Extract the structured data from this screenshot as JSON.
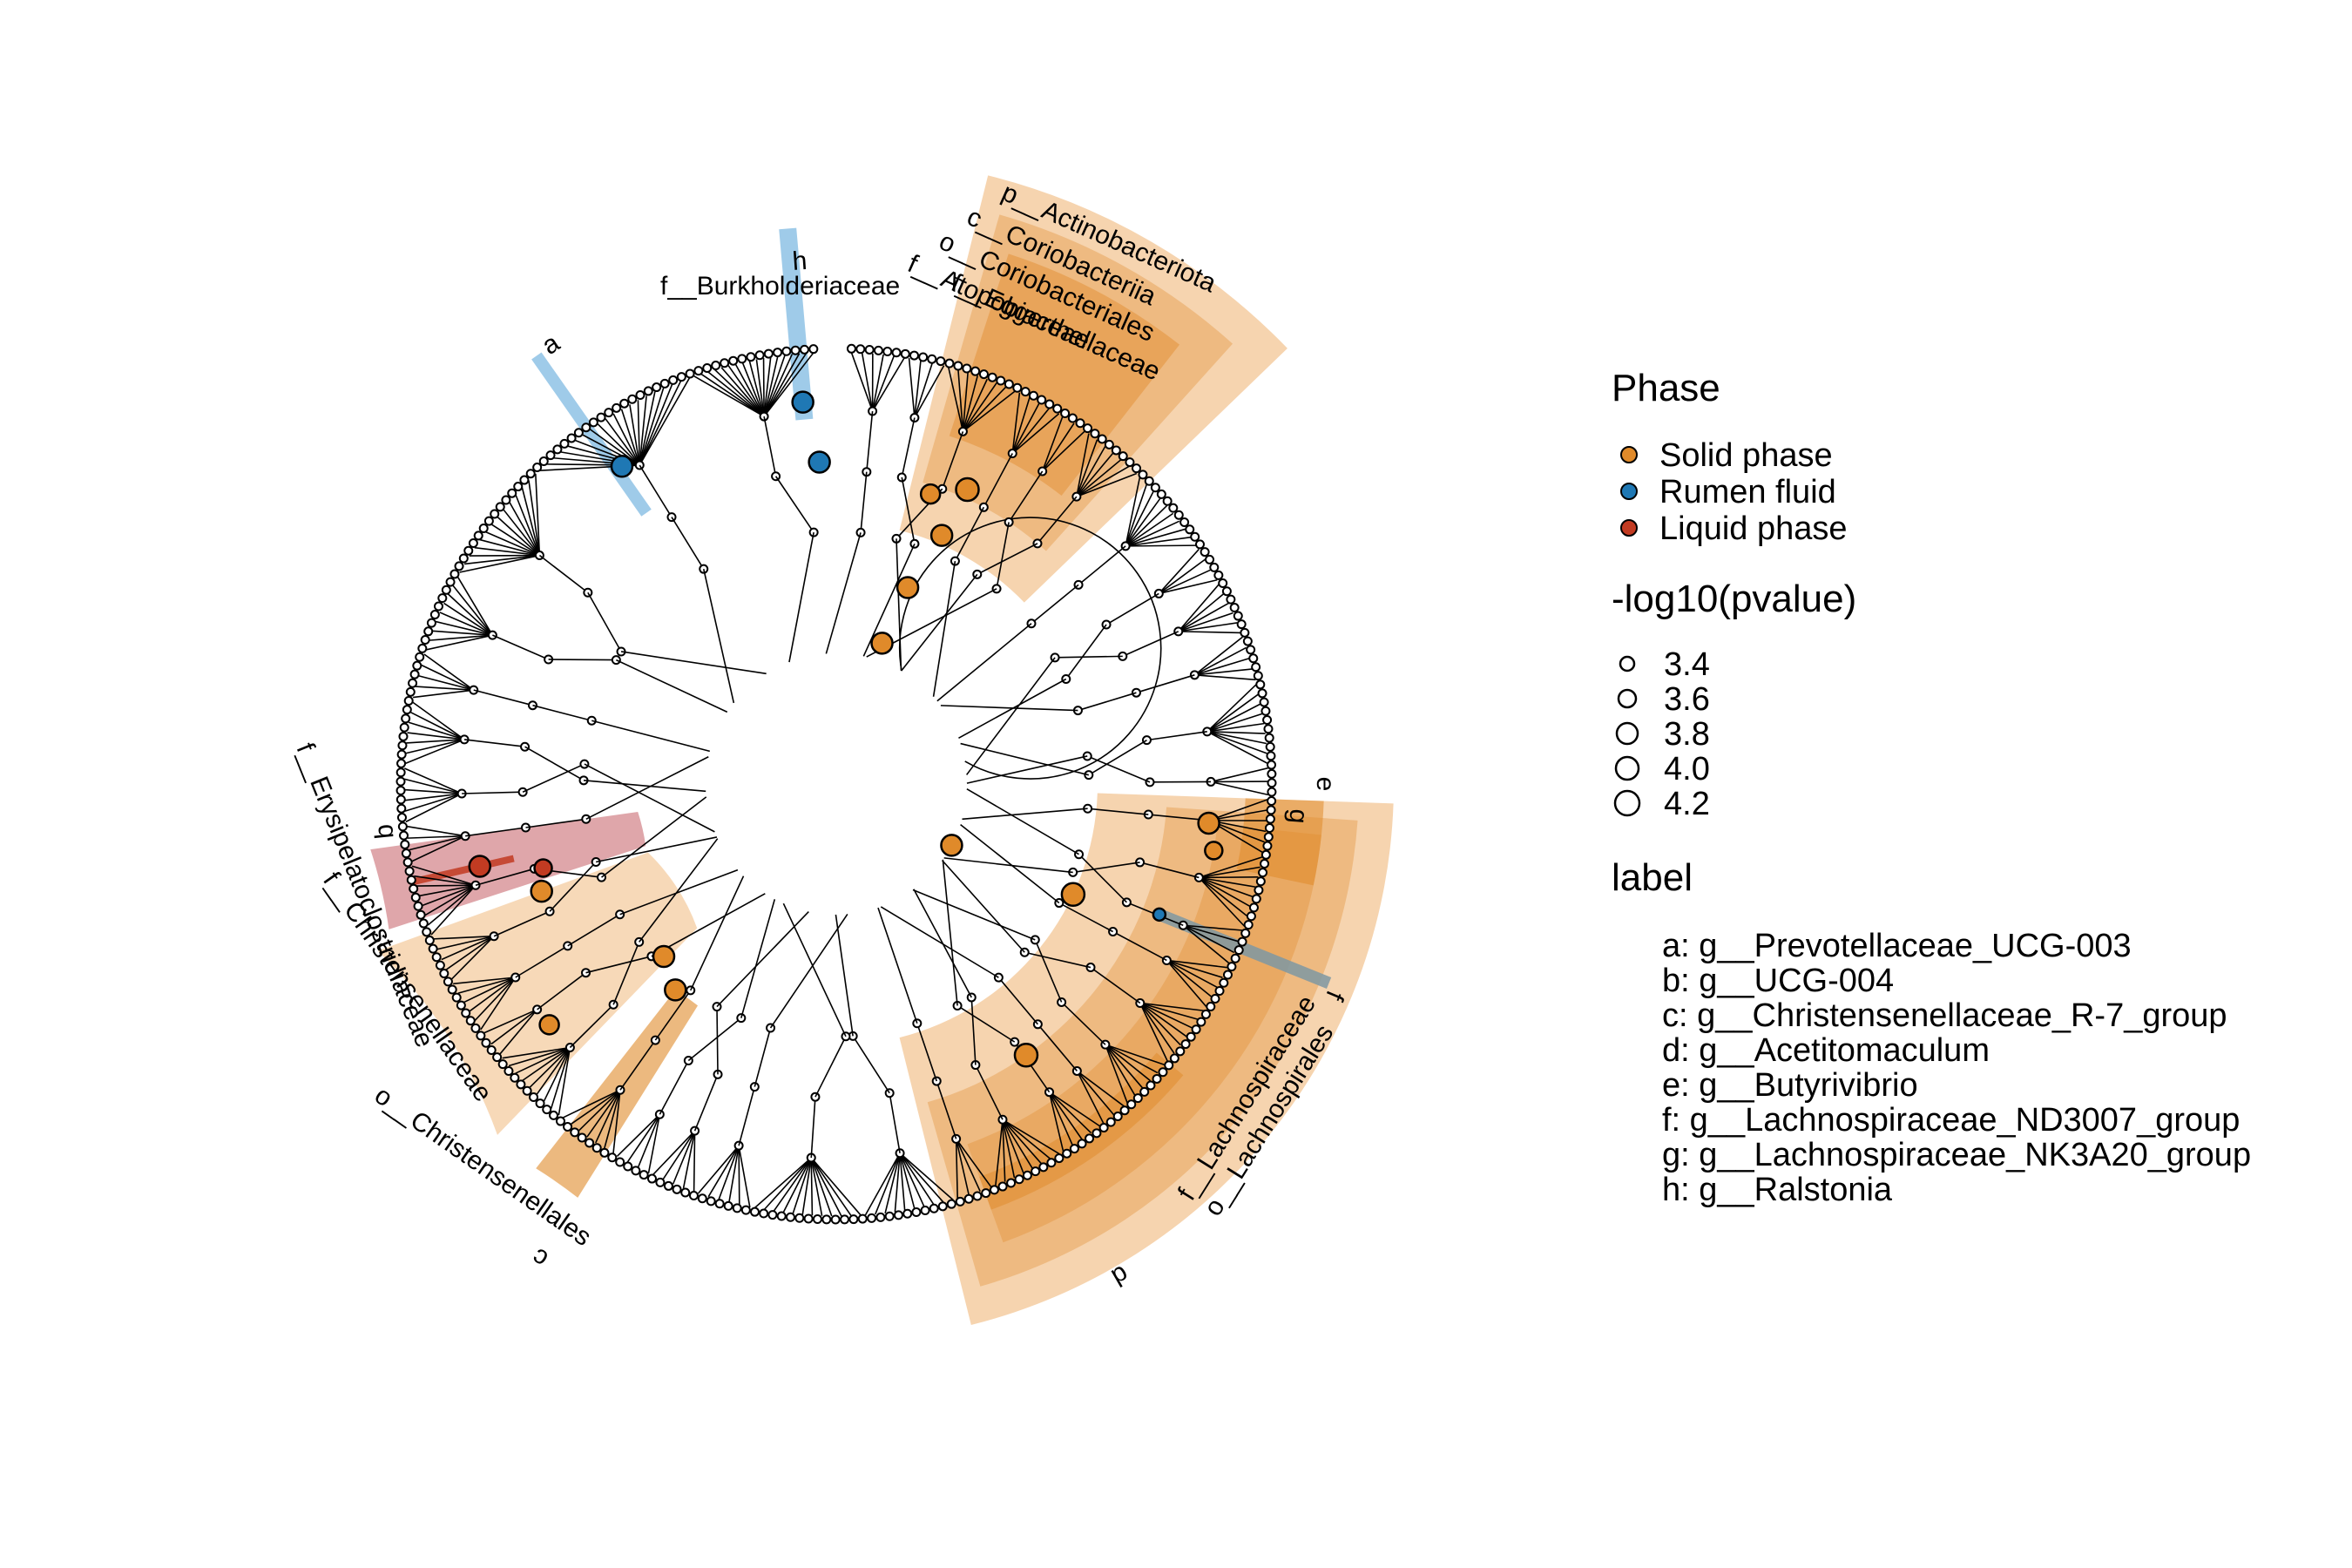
{
  "colors": {
    "solid": "#E08A2A",
    "rumen": "#1F78B4",
    "liquid": "#C23B22",
    "solid_light": "#F5CFA6",
    "rumen_light": "#8FC3E6",
    "liquid_light": "#D9969B",
    "grey_band": "#7F98A3"
  },
  "legend": {
    "phase_title": "Phase",
    "phase_items": [
      {
        "label": "Solid phase",
        "color_key": "solid"
      },
      {
        "label": "Rumen fluid",
        "color_key": "rumen"
      },
      {
        "label": "Liquid phase",
        "color_key": "liquid"
      }
    ],
    "size_title": "-log10(pvalue)",
    "size_items": [
      "3.4",
      "3.6",
      "3.8",
      "4.0",
      "4.2"
    ],
    "label_title": "label",
    "label_items": [
      "a: g__Prevotellaceae_UCG-003",
      "b: g__UCG-004",
      "c: g__Christensenellaceae_R-7_group",
      "d: g__Acetitomaculum",
      "e: g__Butyrivibrio",
      "f: g__Lachnospiraceae_ND3007_group",
      "g: g__Lachnospiraceae_NK3A20_group",
      "h: g__Ralstonia"
    ]
  },
  "clades": [
    {
      "letter": "a",
      "text": "",
      "phase": "rumen",
      "angle": -124
    },
    {
      "letter": "b",
      "text": "",
      "phase": "liquid",
      "angle": -193
    },
    {
      "letter": "c",
      "text": "",
      "phase": "solid",
      "angle": -233
    },
    {
      "letter": "d",
      "text": "",
      "phase": "solid",
      "angle": -300
    },
    {
      "letter": "e",
      "text": "",
      "phase": "solid",
      "angle": -358
    },
    {
      "letter": "f",
      "text": "",
      "phase": "rumen",
      "angle": -338
    },
    {
      "letter": "g",
      "text": "",
      "phase": "solid",
      "angle": -356
    },
    {
      "letter": "h",
      "text": "",
      "phase": "rumen",
      "angle": -95
    }
  ],
  "taxa_labels": [
    {
      "text": "p__Actinobacteriota",
      "phase": "solid"
    },
    {
      "text": "c__Coriobacteriia",
      "phase": "solid"
    },
    {
      "text": "o__Coriobacteriales",
      "phase": "solid"
    },
    {
      "text": "f__Atopobiaceae",
      "phase": "solid"
    },
    {
      "text": "f__Eggerthellaceae",
      "phase": "solid"
    },
    {
      "text": "f__Burkholderiaceae",
      "phase": "rumen"
    },
    {
      "text": "f__Erysipelatoclostridiaceae",
      "phase": "liquid"
    },
    {
      "text": "f__Christensenellaceae",
      "phase": "solid"
    },
    {
      "text": "o__Christensenellales",
      "phase": "solid"
    },
    {
      "text": "f__Lachnospiraceae",
      "phase": "solid"
    },
    {
      "text": "o__Lachnospirales",
      "phase": "solid"
    }
  ]
}
